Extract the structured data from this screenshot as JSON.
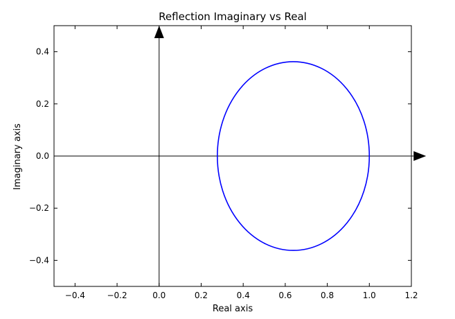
{
  "chart_data": {
    "type": "line",
    "title": "Reflection Imaginary vs Real",
    "xlabel": "Real axis",
    "ylabel": "Imaginary axis",
    "xlim": [
      -0.5,
      1.2
    ],
    "ylim": [
      -0.5,
      0.5
    ],
    "x_ticks": [
      -0.4,
      -0.2,
      0.0,
      0.2,
      0.4,
      0.6,
      0.8,
      1.0,
      1.2
    ],
    "x_tick_labels": [
      "−0.4",
      "−0.2",
      "0.0",
      "0.2",
      "0.4",
      "0.6",
      "0.8",
      "1.0",
      "1.2"
    ],
    "y_ticks": [
      0.4,
      0.2,
      0.0,
      -0.2,
      -0.4
    ],
    "y_tick_labels": [
      "0.4",
      "0.2",
      "0.0",
      "−0.2",
      "−0.4"
    ],
    "grid": false,
    "series": [
      {
        "color": "#0000ff",
        "shape": "ellipse",
        "center": [
          0.64,
          0.0
        ],
        "x_range": [
          0.277,
          1.0
        ],
        "y_range": [
          -0.362,
          0.362
        ]
      }
    ],
    "annotations": [
      {
        "kind": "arrow",
        "from": [
          -0.5,
          0.0
        ],
        "to": [
          1.27,
          0.0
        ],
        "color": "#000000"
      },
      {
        "kind": "arrow",
        "from": [
          0.0,
          -0.5
        ],
        "to": [
          0.0,
          0.5
        ],
        "color": "#000000"
      }
    ]
  }
}
